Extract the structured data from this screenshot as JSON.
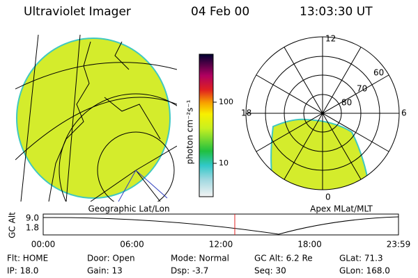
{
  "header": {
    "title": "Ultraviolet Imager",
    "date": "04 Feb 00",
    "time": "13:03:30 UT"
  },
  "geo_panel": {
    "label": "Geographic Lat/Lon"
  },
  "colorbar": {
    "label": "photon cm⁻²s⁻¹",
    "ticks": [
      "100",
      "10"
    ]
  },
  "polar_panel": {
    "label": "Apex MLat/MLT",
    "mlt_labels": [
      "12",
      "18",
      "6",
      "0"
    ],
    "lat_labels": [
      "60",
      "70",
      "80"
    ]
  },
  "altitude_plot": {
    "ylabel": "GC Alt",
    "yticks": [
      "9.0",
      "1.8"
    ],
    "xticks": [
      "00:00",
      "06:00",
      "12:00",
      "18:00",
      "23:59"
    ]
  },
  "footer": {
    "rows": [
      [
        "Flt: HOME",
        "Door: Open",
        "Mode: Normal",
        "GC Alt: 6.2 Re",
        "GLat: 71.3"
      ],
      [
        "IP: 18.0",
        "Gain: 13",
        "Dsp: -3.7",
        "Seq: 30",
        "GLon: 168.0"
      ]
    ]
  }
}
